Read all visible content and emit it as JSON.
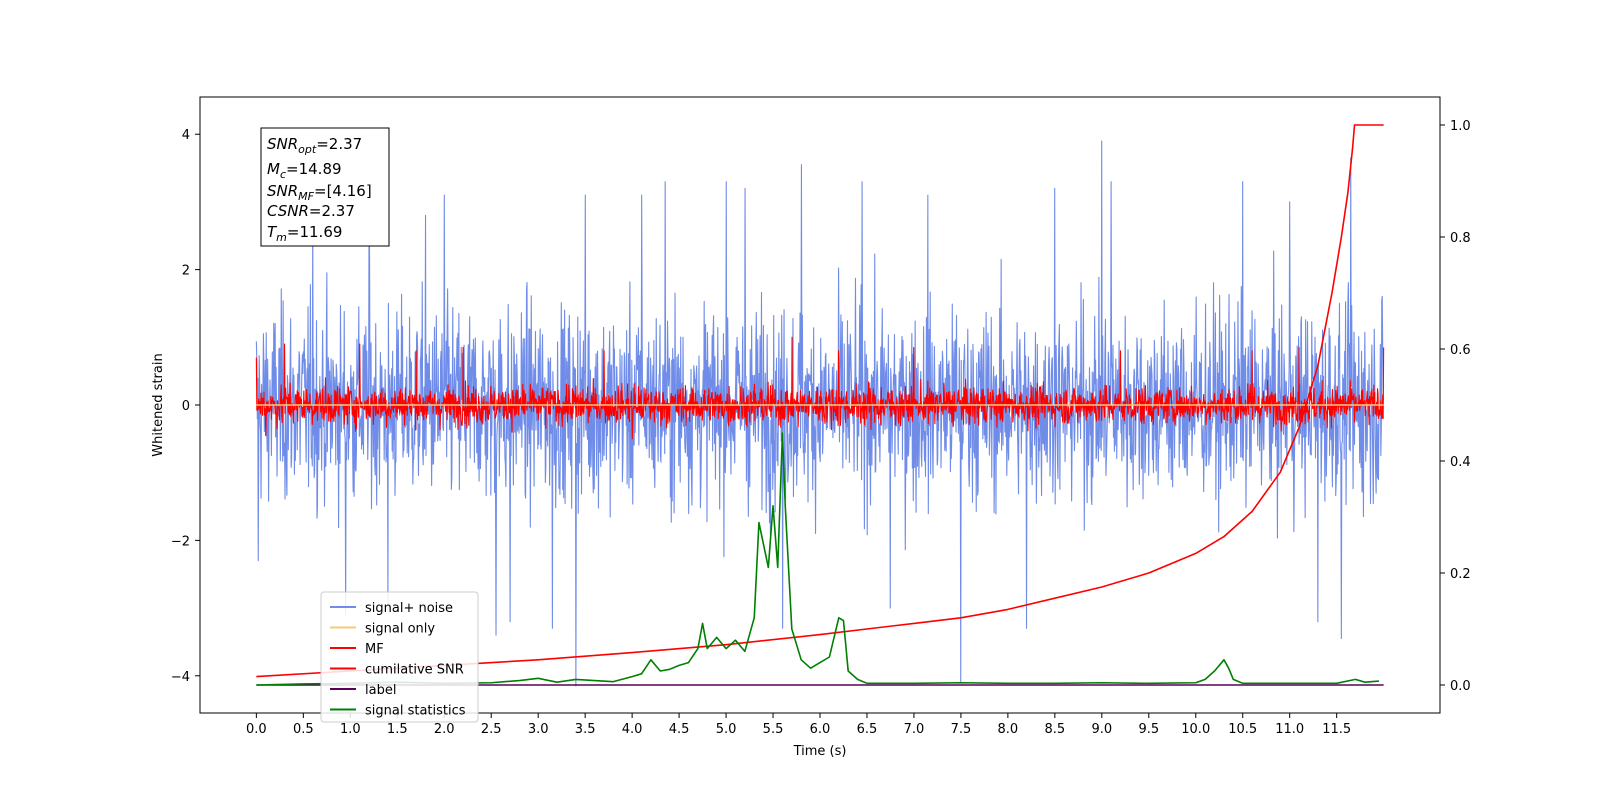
{
  "chart_data": {
    "type": "line",
    "xlabel": "Time (s)",
    "ylabel": "Whitened strain",
    "xlim": [
      -0.6,
      12.6
    ],
    "ylim": [
      -4.55,
      4.55
    ],
    "y2lim": [
      -0.05,
      1.05
    ],
    "grid": false,
    "x_ticks": [
      "0.0",
      "0.5",
      "1.0",
      "1.5",
      "2.0",
      "2.5",
      "3.0",
      "3.5",
      "4.0",
      "4.5",
      "5.0",
      "5.5",
      "6.0",
      "6.5",
      "7.0",
      "7.5",
      "8.0",
      "8.5",
      "9.0",
      "9.5",
      "10.0",
      "10.5",
      "11.0",
      "11.5"
    ],
    "x_tick_values": [
      0.0,
      0.5,
      1.0,
      1.5,
      2.0,
      2.5,
      3.0,
      3.5,
      4.0,
      4.5,
      5.0,
      5.5,
      6.0,
      6.5,
      7.0,
      7.5,
      8.0,
      8.5,
      9.0,
      9.5,
      10.0,
      10.5,
      11.0,
      11.5
    ],
    "y_ticks": [
      "−4",
      "−2",
      "0",
      "2",
      "4"
    ],
    "y_tick_values": [
      -4,
      -2,
      0,
      2,
      4
    ],
    "y2_ticks": [
      "0.0",
      "0.2",
      "0.4",
      "0.6",
      "0.8",
      "1.0"
    ],
    "y2_tick_values": [
      0.0,
      0.2,
      0.4,
      0.6,
      0.8,
      1.0
    ],
    "legend_position": "lower-left",
    "info_box": {
      "position": "upper-left",
      "lines": [
        {
          "var": "SNR",
          "sub": "opt",
          "value": "=2.37"
        },
        {
          "var": "M",
          "sub": "c",
          "value": "=14.89"
        },
        {
          "var": "SNR",
          "sub": "MF",
          "value": "=[4.16]"
        },
        {
          "var": "CSNR",
          "sub": "",
          "value": "=2.37"
        },
        {
          "var": "T",
          "sub": "m",
          "value": "=11.69"
        }
      ]
    },
    "series": [
      {
        "name": "signal+ noise",
        "color": "#6f8ce8",
        "axis": "left",
        "kind": "noise",
        "x_range": [
          0.0,
          12.0
        ],
        "mean": 0.0,
        "std": 1.0,
        "spikes": [
          [
            0.02,
            4.15
          ],
          [
            0.02,
            -2.3
          ],
          [
            0.6,
            2.9
          ],
          [
            0.95,
            -3.1
          ],
          [
            1.2,
            3.4
          ],
          [
            1.4,
            -3.0
          ],
          [
            1.8,
            2.8
          ],
          [
            2.0,
            3.1
          ],
          [
            2.55,
            -3.4
          ],
          [
            2.7,
            -3.2
          ],
          [
            3.15,
            -3.3
          ],
          [
            3.4,
            -4.15
          ],
          [
            3.5,
            3.1
          ],
          [
            4.1,
            3.1
          ],
          [
            4.35,
            3.3
          ],
          [
            5.0,
            3.3
          ],
          [
            5.2,
            3.2
          ],
          [
            5.6,
            -3.3
          ],
          [
            5.8,
            3.55
          ],
          [
            6.45,
            3.3
          ],
          [
            6.75,
            -3.0
          ],
          [
            7.15,
            3.1
          ],
          [
            7.5,
            -4.1
          ],
          [
            8.2,
            -3.3
          ],
          [
            8.5,
            3.2
          ],
          [
            9.0,
            3.9
          ],
          [
            9.1,
            3.3
          ],
          [
            10.5,
            3.3
          ],
          [
            11.0,
            3.0
          ],
          [
            11.3,
            -3.2
          ],
          [
            11.55,
            -3.45
          ],
          [
            11.65,
            3.65
          ]
        ]
      },
      {
        "name": "signal only",
        "color": "#f5c97a",
        "axis": "left",
        "kind": "line",
        "x": [
          0.0,
          12.0
        ],
        "y": [
          0.0,
          0.0
        ]
      },
      {
        "name": "MF",
        "color": "#ff0000",
        "axis": "left",
        "kind": "noise",
        "x_range": [
          0.0,
          12.0
        ],
        "mean": 0.0,
        "std": 0.2,
        "spikes": [
          [
            0.0,
            0.7
          ],
          [
            0.3,
            0.9
          ],
          [
            1.1,
            0.9
          ],
          [
            1.7,
            0.8
          ],
          [
            2.2,
            0.85
          ],
          [
            3.7,
            0.8
          ],
          [
            4.0,
            0.8
          ],
          [
            5.7,
            1.0
          ],
          [
            6.2,
            0.8
          ],
          [
            7.0,
            0.85
          ],
          [
            9.2,
            0.8
          ],
          [
            10.6,
            0.8
          ],
          [
            11.1,
            0.85
          ],
          [
            12.0,
            0.85
          ],
          [
            0.1,
            -0.45
          ],
          [
            4.0,
            -0.5
          ]
        ]
      },
      {
        "name": "cumilative SNR",
        "color": "#ff0000",
        "axis": "right",
        "kind": "line",
        "x": [
          0.0,
          1.0,
          2.0,
          3.0,
          4.0,
          5.0,
          6.0,
          7.0,
          7.5,
          8.0,
          8.5,
          9.0,
          9.5,
          10.0,
          10.3,
          10.6,
          10.9,
          11.1,
          11.3,
          11.45,
          11.55,
          11.62,
          11.67,
          11.69,
          11.72,
          12.0
        ],
        "y": [
          0.015,
          0.025,
          0.035,
          0.045,
          0.058,
          0.072,
          0.09,
          0.11,
          0.12,
          0.135,
          0.155,
          0.175,
          0.2,
          0.235,
          0.265,
          0.31,
          0.38,
          0.46,
          0.57,
          0.7,
          0.8,
          0.88,
          0.96,
          1.0,
          1.0,
          1.0
        ]
      },
      {
        "name": "label",
        "color": "#5a005a",
        "axis": "right",
        "kind": "line",
        "x": [
          0.0,
          12.0
        ],
        "y": [
          0.0,
          0.0
        ]
      },
      {
        "name": "signal statistics",
        "color": "#008000",
        "axis": "right",
        "kind": "line",
        "x": [
          0.0,
          0.5,
          1.0,
          1.5,
          2.0,
          2.5,
          2.8,
          3.0,
          3.2,
          3.4,
          3.6,
          3.8,
          4.0,
          4.1,
          4.2,
          4.3,
          4.4,
          4.5,
          4.6,
          4.7,
          4.75,
          4.8,
          4.9,
          5.0,
          5.1,
          5.2,
          5.3,
          5.35,
          5.45,
          5.5,
          5.55,
          5.6,
          5.63,
          5.7,
          5.8,
          5.9,
          6.0,
          6.1,
          6.2,
          6.25,
          6.3,
          6.4,
          6.5,
          7.0,
          7.5,
          8.0,
          8.5,
          9.0,
          9.5,
          10.0,
          10.1,
          10.2,
          10.3,
          10.35,
          10.4,
          10.5,
          11.0,
          11.5,
          11.7,
          11.8,
          11.95
        ],
        "y": [
          0.0,
          0.002,
          0.003,
          0.005,
          0.003,
          0.004,
          0.008,
          0.012,
          0.005,
          0.01,
          0.008,
          0.006,
          0.015,
          0.02,
          0.045,
          0.025,
          0.028,
          0.035,
          0.04,
          0.065,
          0.11,
          0.065,
          0.085,
          0.065,
          0.08,
          0.06,
          0.12,
          0.29,
          0.21,
          0.32,
          0.21,
          0.45,
          0.32,
          0.1,
          0.045,
          0.03,
          0.04,
          0.05,
          0.12,
          0.115,
          0.025,
          0.01,
          0.003,
          0.003,
          0.004,
          0.003,
          0.003,
          0.004,
          0.003,
          0.004,
          0.01,
          0.025,
          0.045,
          0.03,
          0.01,
          0.003,
          0.003,
          0.003,
          0.01,
          0.005,
          0.007
        ]
      }
    ]
  }
}
